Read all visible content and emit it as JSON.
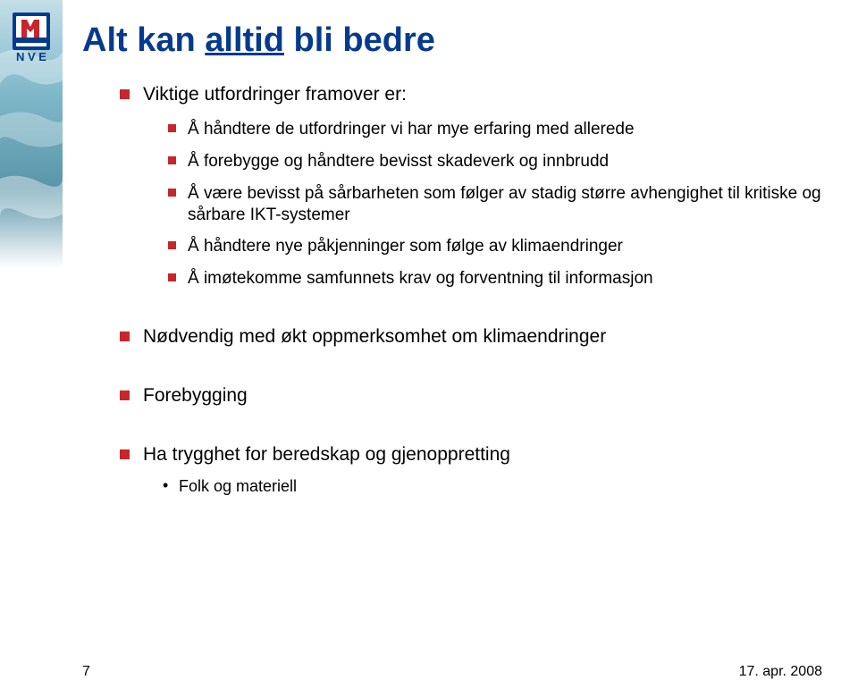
{
  "colors": {
    "title": "#053a8e",
    "body_text": "#000000",
    "bullet": "#c6262c",
    "footer_text": "#000000",
    "logo_blue": "#053a8e",
    "logo_red": "#c6262c",
    "water_light": "#c4dfe8",
    "water_mid": "#7fb8c9",
    "water_dark": "#5a95a9",
    "white": "#ffffff"
  },
  "title": {
    "pre": "Alt kan ",
    "underlined": "alltid",
    "post": " bli bedre"
  },
  "items": [
    {
      "text": "Viktige utfordringer framover er:",
      "sub": [
        {
          "text": "Å håndtere de utfordringer vi har mye erfaring med allerede"
        },
        {
          "text": "Å forebygge og håndtere bevisst skadeverk og innbrudd"
        },
        {
          "text": "Å være bevisst på sårbarheten som følger av stadig større avhengighet til kritiske og sårbare IKT-systemer"
        },
        {
          "text": "Å håndtere nye påkjenninger som følge av klimaendringer"
        },
        {
          "text": "Å imøtekomme samfunnets krav og forventning til informasjon"
        }
      ]
    },
    {
      "text": "Nødvendig med økt oppmerksomhet om klimaendringer",
      "gap": true
    },
    {
      "text": "Forebygging",
      "gap": true
    },
    {
      "text": "Ha trygghet for beredskap og gjenoppretting",
      "gap": true,
      "subsub": [
        {
          "text": "Folk og materiell"
        }
      ]
    }
  ],
  "footer": {
    "page": "7",
    "date": "17. apr. 2008"
  }
}
